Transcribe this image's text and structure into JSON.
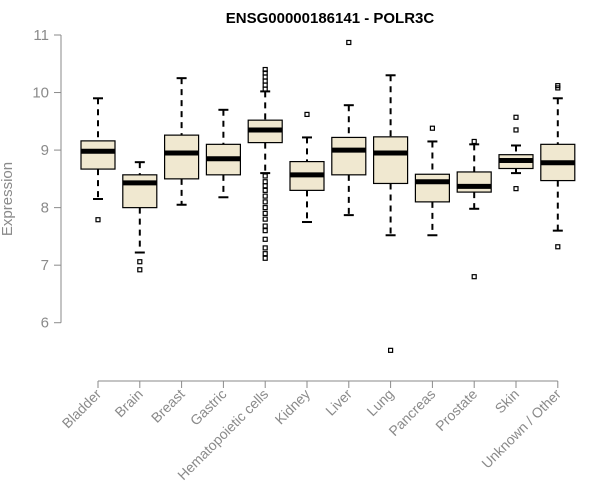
{
  "chart_data": {
    "type": "boxplot",
    "title": "ENSG00000186141 - POLR3C",
    "xlabel": "",
    "ylabel": "Expression",
    "ylim": [
      5.3,
      11.0
    ],
    "yticks": [
      6,
      7,
      8,
      9,
      10,
      11
    ],
    "grid": false,
    "legend": "none",
    "box_fill": "#f0e8d0",
    "box_stroke": "#000000",
    "median_color": "#000000",
    "axis_color": "#8a8a8a",
    "categories": [
      "Bladder",
      "Brain",
      "Breast",
      "Gastric",
      "Hematopoietic cells",
      "Kidney",
      "Liver",
      "Lung",
      "Pancreas",
      "Prostate",
      "Skin",
      "Unknown / Other"
    ],
    "boxes": [
      {
        "category": "Bladder",
        "whisker_low": 8.15,
        "q1": 8.67,
        "median": 8.98,
        "q3": 9.16,
        "whisker_high": 9.9,
        "outliers": [
          7.79
        ]
      },
      {
        "category": "Brain",
        "whisker_low": 7.22,
        "q1": 8.0,
        "median": 8.43,
        "q3": 8.57,
        "whisker_high": 8.79,
        "outliers": [
          7.06,
          6.92
        ]
      },
      {
        "category": "Breast",
        "whisker_low": 8.05,
        "q1": 8.5,
        "median": 8.95,
        "q3": 9.26,
        "whisker_high": 10.25,
        "outliers": []
      },
      {
        "category": "Gastric",
        "whisker_low": 8.18,
        "q1": 8.57,
        "median": 8.85,
        "q3": 9.1,
        "whisker_high": 9.7,
        "outliers": []
      },
      {
        "category": "Hematopoietic cells",
        "whisker_low": 8.6,
        "q1": 9.13,
        "median": 9.35,
        "q3": 9.52,
        "whisker_high": 10.02,
        "outliers": [
          10.4,
          10.34,
          10.27,
          10.2,
          10.13,
          10.06,
          8.55,
          8.45,
          8.38,
          8.3,
          8.2,
          8.1,
          8.0,
          7.9,
          7.8,
          7.68,
          7.6,
          7.45,
          7.3,
          7.2,
          7.12
        ]
      },
      {
        "category": "Kidney",
        "whisker_low": 7.75,
        "q1": 8.3,
        "median": 8.57,
        "q3": 8.8,
        "whisker_high": 9.22,
        "outliers": [
          9.62
        ]
      },
      {
        "category": "Liver",
        "whisker_low": 7.87,
        "q1": 8.57,
        "median": 9.0,
        "q3": 9.22,
        "whisker_high": 9.78,
        "outliers": [
          10.87
        ]
      },
      {
        "category": "Lung",
        "whisker_low": 7.52,
        "q1": 8.42,
        "median": 8.95,
        "q3": 9.23,
        "whisker_high": 10.3,
        "outliers": [
          5.52
        ]
      },
      {
        "category": "Pancreas",
        "whisker_low": 7.52,
        "q1": 8.1,
        "median": 8.45,
        "q3": 8.58,
        "whisker_high": 9.15,
        "outliers": [
          9.38
        ]
      },
      {
        "category": "Prostate",
        "whisker_low": 7.98,
        "q1": 8.27,
        "median": 8.37,
        "q3": 8.62,
        "whisker_high": 9.1,
        "outliers": [
          9.15,
          6.8
        ]
      },
      {
        "category": "Skin",
        "whisker_low": 8.6,
        "q1": 8.68,
        "median": 8.82,
        "q3": 8.92,
        "whisker_high": 9.08,
        "outliers": [
          9.57,
          9.35,
          8.33
        ]
      },
      {
        "category": "Unknown / Other",
        "whisker_low": 7.6,
        "q1": 8.47,
        "median": 8.78,
        "q3": 9.1,
        "whisker_high": 9.9,
        "outliers": [
          10.12,
          10.08,
          7.32
        ]
      }
    ]
  }
}
